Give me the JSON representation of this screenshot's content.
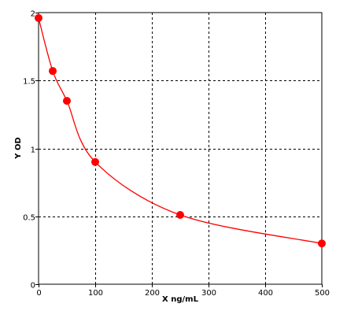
{
  "chart_data": {
    "type": "scatter",
    "xlabel": "X ng/mL",
    "ylabel": "Y OD",
    "xlim": [
      0,
      500
    ],
    "ylim": [
      0,
      2
    ],
    "x_ticks": [
      0,
      100,
      200,
      300,
      400,
      500
    ],
    "y_ticks": [
      0,
      0.5,
      1,
      1.5,
      2
    ],
    "x_tick_labels": [
      "0",
      "100",
      "200",
      "300",
      "400",
      "500"
    ],
    "y_tick_labels": [
      "0",
      "0.5",
      "1",
      "1.5",
      "2"
    ],
    "grid": true,
    "series": [
      {
        "points": [
          {
            "x": 0,
            "y": 1.96
          },
          {
            "x": 25,
            "y": 1.57
          },
          {
            "x": 50,
            "y": 1.35
          },
          {
            "x": 100,
            "y": 0.9
          },
          {
            "x": 250,
            "y": 0.51
          },
          {
            "x": 500,
            "y": 0.3
          }
        ],
        "fit_line": true,
        "color": "#ff0000"
      }
    ]
  }
}
